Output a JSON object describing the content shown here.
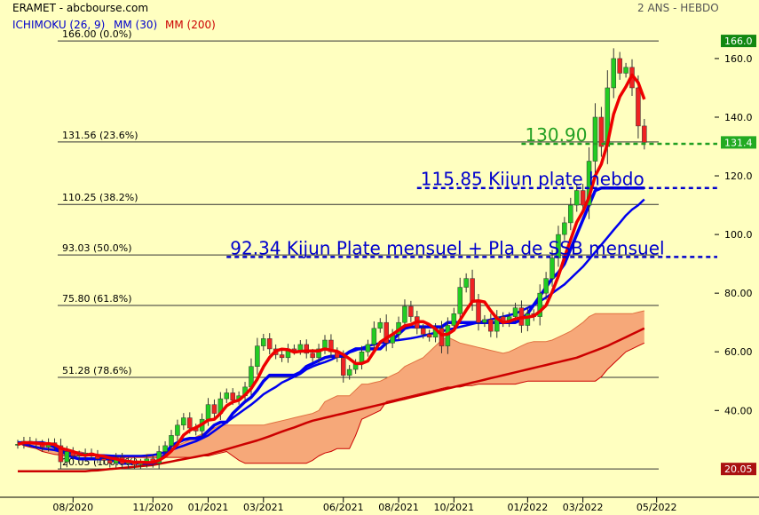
{
  "header": {
    "source": "ERAMET - abcbourse.com",
    "period": "2 ANS - HEBDO",
    "indicators": [
      {
        "label": "ICHIMOKU (26, 9)",
        "color": "#0000cc"
      },
      {
        "label": "MM (30)",
        "color": "#0000cc"
      },
      {
        "label": "MM (200)",
        "color": "#cc0000"
      }
    ]
  },
  "chart_data": {
    "type": "candlestick",
    "ylim": [
      10,
      170
    ],
    "yticks": [
      "40.00",
      "60.00",
      "80.00",
      "100.0",
      "120.0",
      "140.0",
      "160.0"
    ],
    "ytick_values": [
      40,
      60,
      80,
      100,
      120,
      140,
      160
    ],
    "xticks": [
      "08/2020",
      "11/2020",
      "01/2021",
      "03/2021",
      "06/2021",
      "08/2021",
      "10/2021",
      "01/2022",
      "03/2022",
      "05/2022"
    ],
    "xtick_weeks": [
      9,
      22,
      31,
      40,
      53,
      62,
      71,
      83,
      92,
      104
    ],
    "fib_levels": [
      {
        "label": "166.00  (0.0%)",
        "value": 166.0
      },
      {
        "label": "131.56  (23.6%)",
        "value": 131.56
      },
      {
        "label": "110.25  (38.2%)",
        "value": 110.25
      },
      {
        "label": "93.03  (50.0%)",
        "value": 93.03
      },
      {
        "label": "75.80  (61.8%)",
        "value": 75.8
      },
      {
        "label": "51.28  (78.6%)",
        "value": 51.28
      },
      {
        "label": "20.05  (100.0%)",
        "value": 20.05
      }
    ],
    "annotations": [
      {
        "value": 130.9,
        "text": "130.90",
        "color": "#22a022",
        "x_start": 82
      },
      {
        "value": 115.85,
        "text": "115.85  Kijun plate hebdo",
        "color": "#0000cc",
        "x_start": 65
      },
      {
        "value": 92.34,
        "text": "92.34  Kijun Plate mensuel + Pla de SSB mensuel",
        "color": "#0000cc",
        "x_start": 34
      }
    ],
    "last_price": {
      "label": "131.4",
      "value": 131.4
    },
    "high_label": {
      "label": "166.0",
      "value": 166.0
    },
    "low_label": {
      "label": "20.05",
      "value": 20.05
    },
    "candles_close": [
      28.5,
      29.5,
      29.0,
      28.5,
      27.5,
      29.0,
      28.0,
      22.5,
      26.0,
      24.5,
      24.8,
      25.5,
      25.0,
      23.5,
      23.0,
      22.0,
      24.0,
      21.8,
      22.5,
      21.5,
      22.0,
      23.5,
      22.0,
      26.0,
      28.0,
      31.5,
      35.0,
      37.5,
      34.0,
      33.0,
      37.0,
      42.0,
      39.0,
      44.0,
      46.0,
      43.5,
      45.0,
      48.0,
      55.0,
      62.0,
      64.5,
      61.0,
      59.0,
      58.0,
      61.0,
      60.5,
      62.5,
      59.5,
      58.0,
      61.0,
      64.0,
      60.0,
      58.0,
      52.0,
      54.0,
      56.0,
      60.0,
      62.5,
      68.0,
      70.0,
      63.0,
      66.0,
      70.0,
      75.5,
      72.0,
      68.0,
      66.0,
      65.0,
      68.0,
      62.0,
      69.0,
      73.0,
      82.0,
      85.0,
      77.0,
      70.0,
      71.0,
      67.0,
      72.0,
      70.0,
      72.0,
      75.0,
      69.0,
      73.0,
      72.0,
      80.0,
      85.0,
      92.0,
      100.0,
      104.0,
      110.0,
      115.0,
      110.0,
      125.0,
      140.0,
      130.0,
      150.0,
      160.0,
      155.0,
      157.0,
      150.0,
      137.0,
      131.4
    ],
    "kijun": [
      29,
      29,
      29,
      29,
      29,
      28.5,
      27.5,
      26.5,
      25,
      24,
      23.5,
      23.5,
      23.5,
      23.5,
      23.5,
      23.5,
      22.5,
      22,
      22,
      22,
      22,
      22,
      22,
      23,
      25,
      28,
      29,
      30,
      30.5,
      30.5,
      31,
      33,
      35,
      36,
      36,
      39,
      41,
      43,
      44.5,
      47,
      50,
      52,
      52,
      52,
      52,
      52,
      53,
      55,
      56,
      57,
      58,
      58.5,
      58.5,
      58.5,
      60,
      61,
      61,
      61,
      61,
      61,
      63,
      64,
      66,
      68,
      68.5,
      68.5,
      68.5,
      68.5,
      68.5,
      68.5,
      70,
      70,
      70,
      70,
      70,
      70,
      70,
      70,
      70,
      70,
      70,
      70,
      71,
      73,
      76,
      79,
      82,
      85,
      87,
      90,
      95,
      100,
      105,
      110,
      115,
      115.85,
      115.85,
      115.85,
      115.85,
      115.85,
      115.85,
      115.85,
      115.85
    ],
    "mm30": [
      29,
      28.5,
      28,
      27.5,
      27,
      26.8,
      26.5,
      26,
      25.7,
      25.5,
      25.3,
      25.2,
      25,
      24.8,
      24.7,
      24.6,
      24.5,
      24.5,
      24.5,
      24.5,
      24.5,
      24.6,
      24.8,
      25.2,
      25.8,
      26.5,
      27.3,
      28,
      28.8,
      29.5,
      30.5,
      31.5,
      33,
      34.5,
      36,
      37.5,
      39,
      40.5,
      42,
      43.7,
      45.5,
      46.8,
      48,
      49.5,
      50.5,
      51.5,
      52.5,
      54,
      55,
      55.8,
      56.5,
      57.3,
      58.3,
      59,
      59.8,
      60.5,
      61.3,
      62,
      62.5,
      63,
      63.4,
      63.8,
      64,
      64.3,
      64.6,
      65,
      65.5,
      66,
      66.5,
      67,
      67.5,
      68,
      68.5,
      69,
      69.5,
      70,
      70.5,
      71,
      71.5,
      72,
      72.5,
      73,
      74,
      75,
      76,
      77.2,
      78.5,
      80,
      81.5,
      83,
      85,
      87,
      89,
      91.5,
      94,
      96.5,
      99,
      101.5,
      104,
      106.5,
      108.5,
      110,
      112
    ],
    "mm200": [
      19.3,
      19.3,
      19.3,
      19.3,
      19.3,
      19.3,
      19.3,
      19.3,
      19.3,
      19.3,
      19.3,
      19.3,
      19.5,
      19.6,
      19.8,
      20,
      20.2,
      20.4,
      20.6,
      20.8,
      21,
      21.2,
      21.4,
      21.8,
      22.2,
      22.6,
      23,
      23.4,
      23.8,
      24.2,
      24.6,
      25,
      25.6,
      26.2,
      26.8,
      27.4,
      28,
      28.6,
      29.2,
      29.8,
      30.5,
      31.2,
      32,
      32.8,
      33.5,
      34.2,
      35,
      35.8,
      36.5,
      37,
      37.5,
      38,
      38.5,
      39,
      39.5,
      40,
      40.5,
      41,
      41.5,
      42,
      42.5,
      43,
      43.5,
      44,
      44.5,
      45,
      45.5,
      46,
      46.5,
      47,
      47.5,
      48,
      48.5,
      49,
      49.5,
      50,
      50.5,
      51,
      51.5,
      52,
      52.5,
      53,
      53.5,
      54,
      54.5,
      55,
      55.5,
      56,
      56.5,
      57,
      57.5,
      58,
      58.8,
      59.6,
      60.4,
      61.2,
      62,
      63,
      64,
      65,
      66,
      67,
      68
    ],
    "cloud_top": [
      29,
      28.5,
      28.5,
      28.5,
      28.5,
      28.5,
      28,
      27,
      26.5,
      26,
      26,
      25.5,
      25,
      24.8,
      24.5,
      24.5,
      24,
      24,
      24,
      24,
      24.5,
      25,
      25,
      25.5,
      26,
      27,
      28,
      29,
      30,
      31,
      32,
      33,
      34,
      35,
      35,
      35,
      35,
      35,
      35,
      35,
      35,
      35.5,
      36,
      36.5,
      37,
      37.5,
      38,
      38.5,
      39,
      40,
      43,
      44,
      45,
      45,
      45,
      47,
      49,
      49,
      49.5,
      50,
      51,
      52,
      53,
      55,
      56,
      57,
      58,
      60,
      62,
      64,
      65,
      64,
      63,
      62.5,
      62,
      61.5,
      61,
      60.5,
      60,
      59.5,
      60,
      61,
      62,
      63,
      63.5,
      63.5,
      63.5,
      64,
      65,
      66,
      67,
      68.5,
      70,
      72,
      73,
      73,
      73,
      73,
      73,
      73,
      73,
      73.5,
      74
    ],
    "cloud_bottom": [
      29,
      28,
      27.5,
      27,
      26,
      25.5,
      25,
      24.8,
      24.5,
      24.5,
      24.5,
      24.5,
      24.5,
      24.5,
      24.5,
      24.5,
      24,
      24,
      24,
      24,
      24,
      24,
      24,
      24,
      24,
      24,
      24,
      24,
      24,
      24,
      24.5,
      24.5,
      25,
      25.5,
      26,
      24.5,
      23,
      22,
      22,
      22,
      22,
      22,
      22,
      22,
      22,
      22,
      22,
      22,
      23,
      24.5,
      25.5,
      26,
      27,
      27,
      27,
      31.5,
      37,
      38,
      39,
      40,
      43,
      43.5,
      44,
      44.5,
      45,
      45.5,
      46,
      46.5,
      47,
      47.5,
      48,
      48,
      48,
      48.5,
      48.5,
      49,
      49,
      49,
      49,
      49,
      49,
      49,
      49.5,
      50,
      50,
      50,
      50,
      50,
      50,
      50,
      50,
      50,
      50,
      50,
      50,
      51.5,
      54,
      56,
      58,
      60,
      61,
      62,
      63
    ]
  }
}
